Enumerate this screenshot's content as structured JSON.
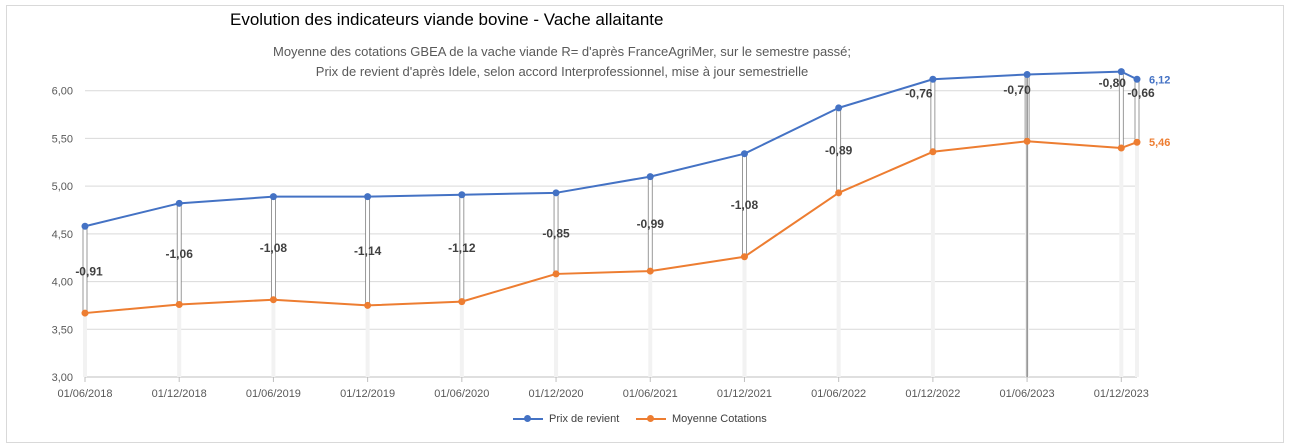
{
  "chart_data": {
    "type": "line",
    "title": "Evolution des indicateurs viande bovine - Vache allaitante",
    "subtitle": [
      "Moyenne des cotations GBEA de la vache viande R= d'après FranceAgriMer, sur le semestre passé;",
      "Prix de revient d'après Idele, selon accord Interprofessionnel, mise à jour semestrielle"
    ],
    "xlabel": "",
    "ylabel": "",
    "ylim": [
      3.0,
      6.5
    ],
    "yticks": [
      "3,00",
      "3,50",
      "4,00",
      "4,50",
      "5,00",
      "5,50",
      "6,00"
    ],
    "x_tick_labels": [
      "01/06/2018",
      "01/12/2018",
      "01/06/2019",
      "01/12/2019",
      "01/06/2020",
      "01/12/2020",
      "01/06/2021",
      "01/12/2021",
      "01/06/2022",
      "01/12/2022",
      "01/06/2023",
      "01/12/2023"
    ],
    "x": [
      "01/06/2018",
      "01/12/2018",
      "01/06/2019",
      "01/12/2019",
      "01/06/2020",
      "01/12/2020",
      "01/06/2021",
      "01/12/2021",
      "01/06/2022",
      "01/12/2022",
      "01/06/2023",
      "01/12/2023",
      "01/01/2024"
    ],
    "x_positions": [
      0,
      6,
      12,
      18,
      24,
      30,
      36,
      42,
      48,
      54,
      60,
      66,
      67
    ],
    "x_range": [
      0,
      67
    ],
    "series": [
      {
        "name": "Prix de revient",
        "color": "#4472c4",
        "values": [
          4.58,
          4.82,
          4.89,
          4.89,
          4.91,
          4.93,
          5.1,
          5.34,
          5.82,
          6.12,
          6.17,
          6.2,
          6.12
        ]
      },
      {
        "name": "Moyenne Cotations",
        "color": "#ed7d31",
        "values": [
          3.67,
          3.76,
          3.81,
          3.75,
          3.79,
          4.08,
          4.11,
          4.26,
          4.93,
          5.36,
          5.47,
          5.4,
          5.46
        ]
      }
    ],
    "gap_labels": [
      "-0,91",
      "-1,06",
      "-1,08",
      "-1,14",
      "-1,12",
      "-0,85",
      "-0,99",
      "-1,08",
      "-0,89",
      "-0,76",
      "-0,70",
      "-0,80",
      "-0,66"
    ],
    "end_labels": [
      "6,12",
      "5,46"
    ],
    "grid": true,
    "legend_position": "bottom"
  }
}
